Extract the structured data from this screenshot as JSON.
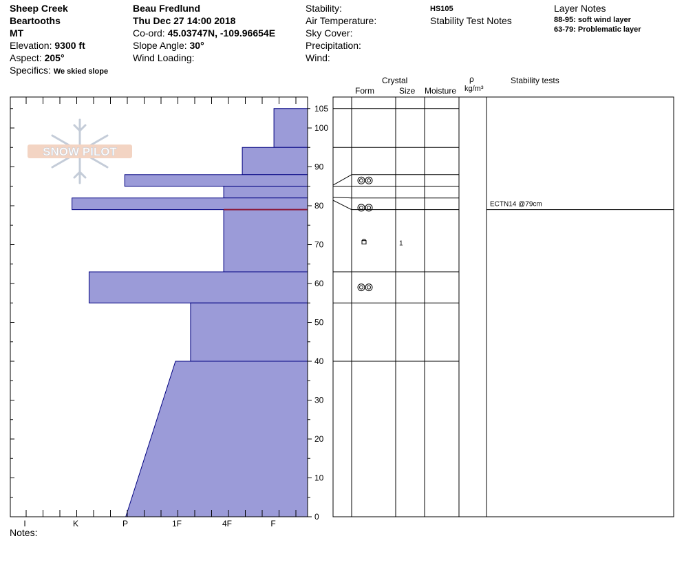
{
  "header": {
    "location": "Sheep Creek",
    "range": "Beartooths",
    "state": "MT",
    "elevation_label": "Elevation:",
    "elevation": "9300 ft",
    "aspect_label": "Aspect:",
    "aspect": "205°",
    "specifics_label": "Specifics:",
    "specifics": "We skied slope",
    "observer": "Beau  Fredlund",
    "datetime": "Thu Dec 27 14:00 2018",
    "coord_label": "Co-ord:",
    "coord": "45.03747N, -109.96654E",
    "slope_label": "Slope Angle:",
    "slope": "30°",
    "wind_loading_label": "Wind Loading:",
    "stability_label": "Stability:",
    "air_temp_label": "Air Temperature:",
    "sky_label": "Sky Cover:",
    "precip_label": "Precipitation:",
    "wind_label": "Wind:",
    "hs": "HS105",
    "stability_notes_label": "Stability Test Notes",
    "layer_notes_label": "Layer Notes",
    "layer_notes": [
      "88-95: soft wind layer",
      "63-79: Problematic layer"
    ]
  },
  "logo_text": "SNOW PILOT",
  "notes_label": "Notes:",
  "columns": {
    "crystal": "Crystal",
    "form": "Form",
    "size": "Size",
    "moisture": "Moisture",
    "rho": "ρ",
    "density_unit": "kg/m³",
    "stability_tests": "Stability tests"
  },
  "chart_data": {
    "type": "hardness_profile",
    "hardness_scale": [
      "I",
      "K",
      "P",
      "1F",
      "4F",
      "F"
    ],
    "y_ticks": [
      0,
      10,
      20,
      30,
      40,
      50,
      60,
      70,
      80,
      90,
      100,
      105
    ],
    "ylim": [
      0,
      108
    ],
    "layers": [
      {
        "top": 105,
        "bottom": 95,
        "hardness": 0.67
      },
      {
        "top": 95,
        "bottom": 88,
        "hardness": 1.3
      },
      {
        "top": 88,
        "bottom": 85,
        "hardness": 3.64
      },
      {
        "top": 85,
        "bottom": 82,
        "hardness": 1.67
      },
      {
        "top": 82,
        "bottom": 79,
        "hardness": 4.69
      },
      {
        "top": 79,
        "bottom": 63,
        "hardness": 1.67
      },
      {
        "top": 63,
        "bottom": 55,
        "hardness": 4.35
      },
      {
        "top": 55,
        "bottom": 40,
        "hardness": 2.33
      },
      {
        "top": 40,
        "bottom": 0,
        "hardness_top": 2.63,
        "hardness_bottom": 3.62
      }
    ],
    "layer_boundaries": [
      95,
      88,
      85,
      82,
      79,
      63,
      55,
      40
    ],
    "problem_layer": 79,
    "crystals": [
      {
        "depth": 86.5,
        "form": "rounding"
      },
      {
        "depth": 79.5,
        "form": "rounding"
      },
      {
        "depth": 70.5,
        "form": "faceted",
        "size": "1"
      },
      {
        "depth": 59,
        "form": "rounding"
      }
    ],
    "stability_tests": [
      {
        "depth": 79,
        "label": "ECTN14 @79cm"
      }
    ]
  }
}
